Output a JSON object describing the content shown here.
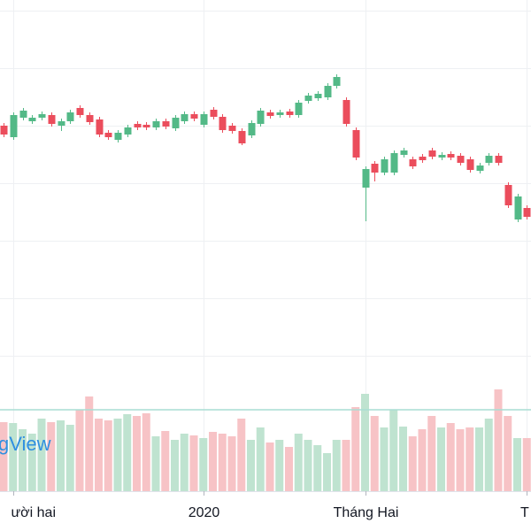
{
  "chart_data": {
    "type": "candlestick",
    "open": [
      413,
      400,
      422,
      418,
      422,
      425,
      413,
      418,
      433,
      425,
      420,
      405,
      397,
      403,
      415,
      414,
      411,
      418,
      410,
      418,
      426,
      414,
      431,
      423,
      413,
      407,
      402,
      415,
      428,
      425,
      429,
      425,
      441,
      444,
      445,
      458,
      442,
      408,
      343,
      370,
      360,
      360,
      380,
      375,
      378,
      385,
      377,
      381,
      379,
      375,
      362,
      371,
      379,
      346,
      307,
      320
    ],
    "high": [
      416,
      428,
      433,
      425,
      429,
      428,
      421,
      431,
      436,
      428,
      423,
      408,
      408,
      414,
      418,
      417,
      421,
      421,
      425,
      429,
      429,
      429,
      434,
      426,
      416,
      410,
      419,
      433,
      431,
      431,
      432,
      442,
      450,
      452,
      461,
      471,
      445,
      411,
      367,
      373,
      378,
      385,
      388,
      378,
      381,
      388,
      383,
      384,
      382,
      378,
      371,
      382,
      382,
      349,
      336,
      323
    ],
    "low": [
      400,
      397,
      419,
      415,
      419,
      412,
      407,
      415,
      422,
      414,
      400,
      397,
      394,
      400,
      408,
      408,
      408,
      409,
      407,
      415,
      418,
      411,
      420,
      405,
      404,
      391,
      399,
      412,
      421,
      422,
      422,
      422,
      438,
      441,
      442,
      455,
      412,
      374,
      305,
      350,
      357,
      357,
      377,
      364,
      371,
      375,
      374,
      374,
      368,
      360,
      359,
      368,
      368,
      320,
      304,
      307
    ],
    "close": [
      403,
      425,
      430,
      422,
      426,
      415,
      418,
      428,
      425,
      417,
      403,
      400,
      405,
      411,
      411,
      411,
      418,
      412,
      422,
      426,
      421,
      426,
      423,
      408,
      407,
      393,
      416,
      430,
      424,
      428,
      425,
      439,
      447,
      449,
      458,
      468,
      415,
      377,
      364,
      360,
      375,
      382,
      385,
      367,
      374,
      378,
      380,
      377,
      371,
      363,
      368,
      379,
      371,
      323,
      333,
      310
    ],
    "volume": [
      78,
      77,
      70,
      65,
      82,
      78,
      80,
      75,
      92,
      107,
      82,
      80,
      82,
      87,
      85,
      88,
      62,
      68,
      58,
      65,
      63,
      60,
      67,
      65,
      62,
      82,
      58,
      72,
      55,
      58,
      50,
      65,
      58,
      52,
      43,
      58,
      58,
      95,
      110,
      85,
      72,
      92,
      73,
      62,
      70,
      85,
      72,
      77,
      70,
      72,
      72,
      82,
      115,
      85,
      60,
      60
    ],
    "volume_line": 92,
    "ylim": [
      0,
      555
    ],
    "vlim": [
      0,
      150
    ],
    "ygrid": [
      543,
      478,
      413,
      348,
      283,
      218,
      153
    ],
    "xticks": [
      {
        "value": 1,
        "label": "ười hai"
      },
      {
        "value": 21,
        "label": "2020"
      },
      {
        "value": 38,
        "label": "Tháng Hai"
      },
      {
        "value": 55,
        "label": "T"
      }
    ],
    "up_color": "#53b987",
    "down_color": "#eb4d5c",
    "up_volume_color": "#bfe3d0",
    "down_volume_color": "#f7c3c6",
    "watermark": "gView",
    "grid": true
  }
}
